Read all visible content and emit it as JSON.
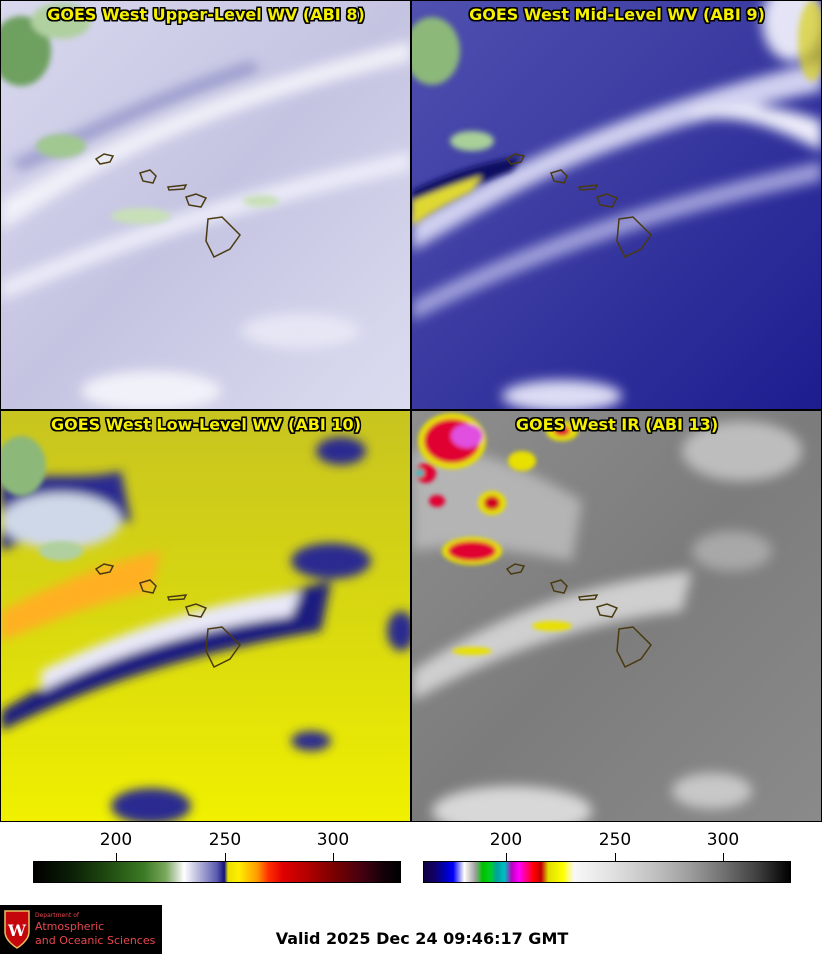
{
  "panels": [
    {
      "title": "GOES West Upper-Level WV (ABI 8)",
      "palette": "wv-upper"
    },
    {
      "title": "GOES West Mid-Level WV (ABI 9)",
      "palette": "wv-mid"
    },
    {
      "title": "GOES West Low-Level WV (ABI 10)",
      "palette": "wv-low"
    },
    {
      "title": "GOES West IR (ABI 13)",
      "palette": "ir"
    }
  ],
  "colorbar_left": {
    "ticks": [
      "200",
      "250",
      "300"
    ],
    "colors": [
      "#000000",
      "#3b7a24",
      "#ffffff",
      "#12127a",
      "#ffee00",
      "#e00000",
      "#000000"
    ]
  },
  "colorbar_right": {
    "ticks": [
      "200",
      "250",
      "300"
    ],
    "colors": [
      "#10006a",
      "#00c000",
      "#ff00ff",
      "#ffff00",
      "#f8f8f8",
      "#000000"
    ]
  },
  "logo": {
    "line1": "Department of",
    "line2": "Atmospheric",
    "line3": "and Oceanic Sciences",
    "crest_letter": "W"
  },
  "valid_time": "Valid 2025 Dec 24 09:46:17 GMT"
}
